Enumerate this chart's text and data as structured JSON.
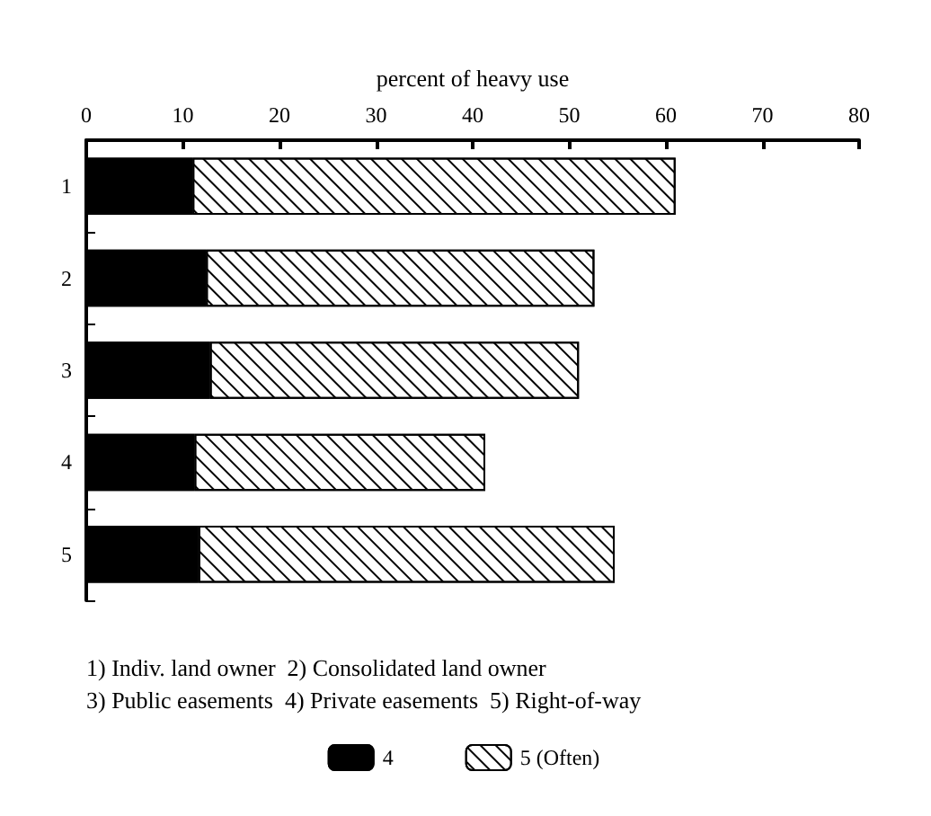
{
  "chart_data": {
    "type": "bar",
    "orientation": "horizontal",
    "stacked": true,
    "xlabel": "percent of heavy use",
    "categories": [
      "1",
      "2",
      "3",
      "4",
      "5"
    ],
    "series": [
      {
        "name": "4",
        "color": "#000000",
        "values": [
          11,
          12.4,
          12.8,
          11.2,
          11.6
        ]
      },
      {
        "name": "5 (Often)",
        "color": "#ffffff",
        "values": [
          50,
          40.2,
          38.2,
          30.1,
          43.1
        ]
      }
    ],
    "xlim": [
      0,
      80
    ],
    "xticks": [
      0,
      10,
      20,
      30,
      40,
      50,
      60,
      70,
      80
    ],
    "grid": false,
    "legend": "bottom",
    "annotations": [
      "1) Indiv. land owner  2) Consolidated land owner",
      "3) Public easements  4) Private easements  5) Right-of-way"
    ]
  }
}
